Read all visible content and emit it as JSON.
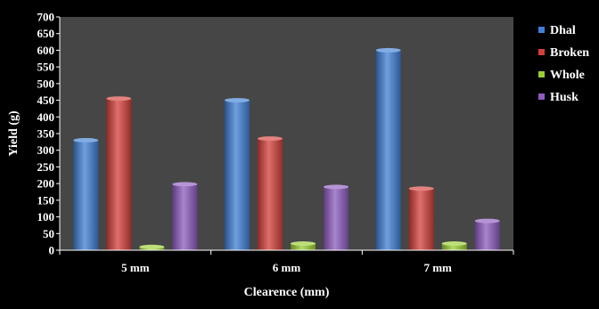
{
  "chart_data": {
    "type": "bar",
    "title": "",
    "xlabel": "Clearence (mm)",
    "ylabel": "Yield (g)",
    "categories": [
      "5 mm",
      "6 mm",
      "7 mm"
    ],
    "series": [
      {
        "name": "Dhal",
        "color": "#3f7fd6",
        "values": [
          330,
          450,
          600
        ]
      },
      {
        "name": "Broken",
        "color": "#d43f3a",
        "values": [
          455,
          335,
          185
        ]
      },
      {
        "name": "Whole",
        "color": "#9acd32",
        "values": [
          10,
          20,
          20
        ]
      },
      {
        "name": "Husk",
        "color": "#8e5bbf",
        "values": [
          198,
          190,
          88
        ]
      }
    ],
    "ylim": [
      0,
      700
    ],
    "yticks": [
      0,
      50,
      100,
      150,
      200,
      250,
      300,
      350,
      400,
      450,
      500,
      550,
      600,
      650,
      700
    ],
    "plot_background": "#464646",
    "legend_position": "right",
    "grid": false
  }
}
